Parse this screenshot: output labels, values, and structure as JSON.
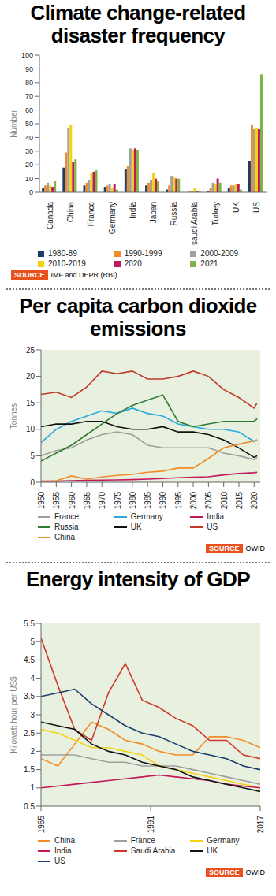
{
  "chart_data": [
    {
      "type": "bar",
      "title": "Climate change-related disaster frequency",
      "y_label": "Number",
      "source_label": "SOURCE",
      "source": "IMF and DEPR (RBI)",
      "categories": [
        "Canada",
        "China",
        "France",
        "Germany",
        "India",
        "Japan",
        "Russia",
        "saudi Arabia",
        "Turkey",
        "UK",
        "US"
      ],
      "series": [
        {
          "name": "1980-89",
          "color": "#1b3d6e",
          "values": [
            3,
            18,
            5,
            4,
            17,
            5,
            2,
            0,
            1,
            3,
            23
          ]
        },
        {
          "name": "1990-1999",
          "color": "#f28c28",
          "values": [
            5,
            29,
            7,
            5,
            19,
            7,
            5,
            1,
            3,
            5,
            49
          ]
        },
        {
          "name": "2000-2009",
          "color": "#a0a0a0",
          "values": [
            7,
            47,
            9,
            6,
            32,
            9,
            12,
            1,
            7,
            5,
            46
          ]
        },
        {
          "name": "2010-2019",
          "color": "#f5d312",
          "values": [
            5,
            49,
            14,
            3,
            31,
            14,
            11,
            3,
            6,
            6,
            47
          ]
        },
        {
          "name": "2020",
          "color": "#c2185b",
          "values": [
            4,
            22,
            15,
            6,
            32,
            10,
            10,
            1,
            10,
            6,
            46
          ]
        },
        {
          "name": "2021",
          "color": "#7cb342",
          "values": [
            8,
            24,
            16,
            2,
            31,
            8,
            10,
            1,
            7,
            2,
            86
          ]
        }
      ],
      "ylim": [
        0,
        100
      ],
      "yticks": [
        0,
        10,
        20,
        30,
        40,
        50,
        60,
        70,
        80,
        90,
        100
      ],
      "grid": false,
      "legend": "bottom"
    },
    {
      "type": "line",
      "title": "Per capita carbon dioxide emissions",
      "y_label": "Tonnes",
      "source_label": "SOURCE",
      "source": "OWID",
      "x": [
        1950,
        1955,
        1960,
        1965,
        1970,
        1975,
        1980,
        1985,
        1990,
        1995,
        2000,
        2005,
        2010,
        2015,
        2020,
        2021
      ],
      "series": [
        {
          "name": "France",
          "color": "#9e9e9e",
          "values": [
            5,
            6,
            6.5,
            8,
            9,
            9.5,
            9,
            7,
            6.5,
            6.5,
            6.5,
            6.5,
            5.5,
            5,
            4.3,
            4.7
          ]
        },
        {
          "name": "Germany",
          "color": "#29a9e0",
          "values": [
            7.5,
            10,
            11.5,
            12.5,
            13.5,
            13,
            14,
            13,
            12.5,
            11,
            10.5,
            10,
            10,
            9.5,
            7.7,
            8
          ]
        },
        {
          "name": "India",
          "color": "#c2185b",
          "values": [
            0.2,
            0.2,
            0.3,
            0.35,
            0.4,
            0.45,
            0.5,
            0.6,
            0.7,
            0.85,
            0.95,
            1.05,
            1.4,
            1.65,
            1.8,
            1.9
          ]
        },
        {
          "name": "Russia",
          "color": "#2e7d32",
          "values": [
            4,
            5.5,
            7,
            9,
            11,
            13,
            14.5,
            15.5,
            16.5,
            11.5,
            10.5,
            11,
            11.5,
            11.5,
            11.5,
            12
          ]
        },
        {
          "name": "UK",
          "color": "#111111",
          "values": [
            10.5,
            11,
            11,
            11.5,
            11.5,
            10.5,
            10,
            10,
            10.5,
            9.5,
            9.5,
            9,
            8,
            6.5,
            4.7,
            5
          ]
        },
        {
          "name": "US",
          "color": "#c0392b",
          "values": [
            16.6,
            17,
            16,
            18,
            21,
            20.5,
            21,
            19.5,
            19.5,
            20,
            21,
            20,
            17.5,
            16,
            14,
            15
          ]
        },
        {
          "name": "China",
          "color": "#f28c28",
          "values": [
            0.1,
            0.3,
            1.2,
            0.6,
            1,
            1.3,
            1.5,
            1.9,
            2.1,
            2.7,
            2.7,
            4.5,
            6.5,
            7.2,
            7.8,
            8
          ]
        }
      ],
      "xlim": [
        1950,
        2022
      ],
      "xticks": [
        1950,
        1955,
        1960,
        1965,
        1970,
        1975,
        1980,
        1985,
        1990,
        1995,
        2000,
        2005,
        2010,
        2015,
        2020
      ],
      "ylim": [
        0,
        25
      ],
      "yticks": [
        0,
        5,
        10,
        15,
        20,
        25
      ],
      "grid": false,
      "legend": "bottom"
    },
    {
      "type": "line",
      "title": "Energy intensity of GDP",
      "y_label": "Kilowatt hour per US$",
      "source_label": "SOURCE",
      "source": "OWID",
      "x": [
        1965,
        1969,
        1973,
        1977,
        1981,
        1985,
        1989,
        1993,
        1997,
        2001,
        2005,
        2009,
        2013,
        2017
      ],
      "series": [
        {
          "name": "China",
          "color": "#f28c28",
          "values": [
            1.8,
            1.6,
            2.2,
            2.8,
            2.6,
            2.3,
            2.2,
            2,
            1.9,
            1.9,
            2.4,
            2.4,
            2.3,
            2.1
          ]
        },
        {
          "name": "France",
          "color": "#9e9e9e",
          "values": [
            1.9,
            1.9,
            1.9,
            1.8,
            1.7,
            1.7,
            1.6,
            1.6,
            1.6,
            1.5,
            1.4,
            1.3,
            1.2,
            1.1
          ]
        },
        {
          "name": "Germany",
          "color": "#f5d312",
          "values": [
            2.6,
            2.5,
            2.3,
            2.1,
            2.1,
            2,
            1.9,
            1.6,
            1.5,
            1.4,
            1.3,
            1.2,
            1.1,
            1
          ]
        },
        {
          "name": "India",
          "color": "#c2185b",
          "values": [
            1,
            1.05,
            1.1,
            1.15,
            1.2,
            1.25,
            1.3,
            1.35,
            1.3,
            1.25,
            1.2,
            1.1,
            1.05,
            1
          ]
        },
        {
          "name": "Saudi Arabia",
          "color": "#d0392b",
          "values": [
            5.1,
            3.8,
            2.6,
            2.3,
            3.6,
            4.4,
            3.4,
            3.2,
            2.9,
            2.7,
            2.3,
            2.3,
            1.9,
            1.8
          ]
        },
        {
          "name": "UK",
          "color": "#111111",
          "values": [
            2.8,
            2.7,
            2.6,
            2.2,
            2,
            1.9,
            1.7,
            1.6,
            1.5,
            1.3,
            1.2,
            1.1,
            1,
            0.9
          ]
        },
        {
          "name": "US",
          "color": "#1b3d6e",
          "values": [
            3.5,
            3.6,
            3.7,
            3.3,
            3,
            2.7,
            2.5,
            2.4,
            2.2,
            2,
            1.9,
            1.8,
            1.6,
            1.5
          ]
        }
      ],
      "xlim": [
        1965,
        2017
      ],
      "xticks": [
        1965,
        1991,
        2017
      ],
      "ylim": [
        0.5,
        5.5
      ],
      "yticks": [
        0.5,
        1,
        1.5,
        2,
        2.5,
        3,
        3.5,
        4,
        4.5,
        5,
        5.5
      ],
      "grid": false,
      "legend": "bottom"
    }
  ]
}
